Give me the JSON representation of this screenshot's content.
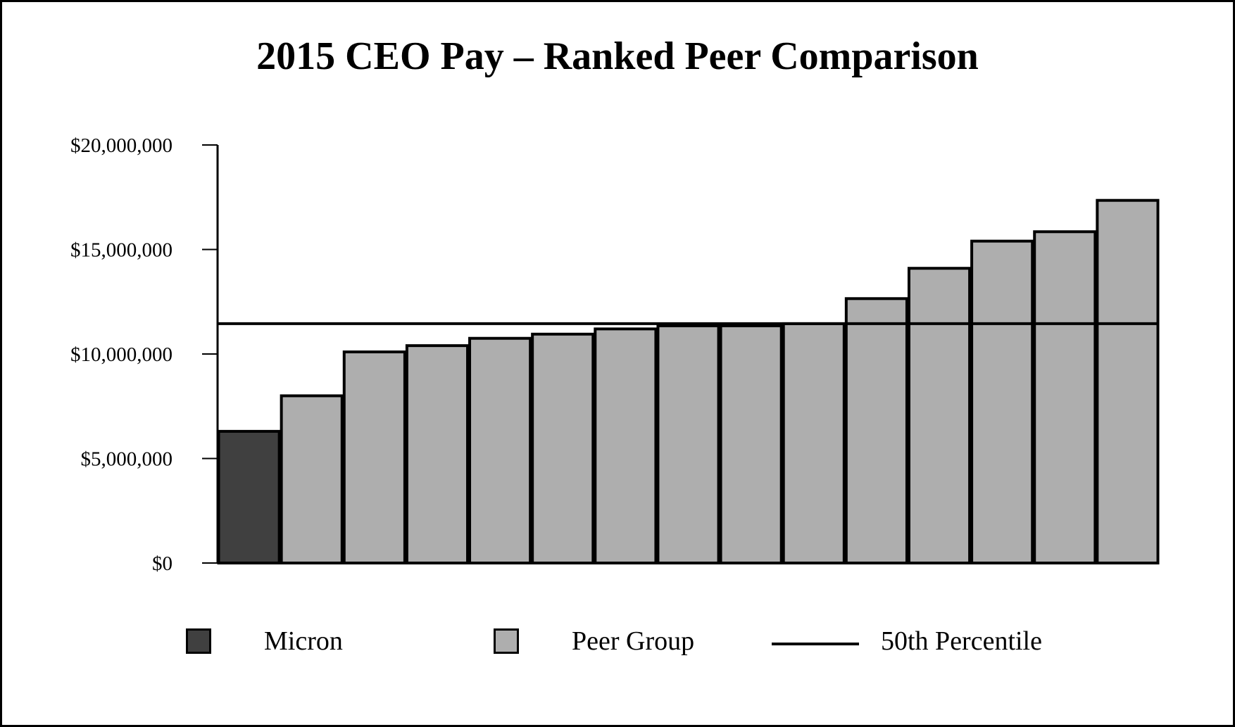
{
  "chart_data": {
    "type": "bar",
    "title": "2015 CEO Pay – Ranked Peer Comparison",
    "xlabel": "",
    "ylabel": "",
    "ylim": [
      0,
      20000000
    ],
    "yticks": [
      {
        "value": 0,
        "label": "$0"
      },
      {
        "value": 5000000,
        "label": "$5,000,000"
      },
      {
        "value": 10000000,
        "label": "$10,000,000"
      },
      {
        "value": 15000000,
        "label": "$15,000,000"
      },
      {
        "value": 20000000,
        "label": "$20,000,000"
      }
    ],
    "bars": [
      {
        "group": "Micron",
        "value": 6300000
      },
      {
        "group": "Peer Group",
        "value": 8000000
      },
      {
        "group": "Peer Group",
        "value": 10100000
      },
      {
        "group": "Peer Group",
        "value": 10400000
      },
      {
        "group": "Peer Group",
        "value": 10750000
      },
      {
        "group": "Peer Group",
        "value": 10950000
      },
      {
        "group": "Peer Group",
        "value": 11200000
      },
      {
        "group": "Peer Group",
        "value": 11350000
      },
      {
        "group": "Peer Group",
        "value": 11350000
      },
      {
        "group": "Peer Group",
        "value": 11450000
      },
      {
        "group": "Peer Group",
        "value": 12650000
      },
      {
        "group": "Peer Group",
        "value": 14100000
      },
      {
        "group": "Peer Group",
        "value": 15400000
      },
      {
        "group": "Peer Group",
        "value": 15850000
      },
      {
        "group": "Peer Group",
        "value": 17350000
      }
    ],
    "reference_line": {
      "name": "50th Percentile",
      "value": 11450000
    },
    "legend": {
      "placement": "bottom",
      "entries": [
        {
          "label": "Micron",
          "type": "swatch",
          "color": "#404040"
        },
        {
          "label": "Peer Group",
          "type": "swatch",
          "color": "#aeaeae"
        },
        {
          "label": "50th Percentile",
          "type": "line",
          "color": "#000000"
        }
      ]
    },
    "grid": false
  }
}
